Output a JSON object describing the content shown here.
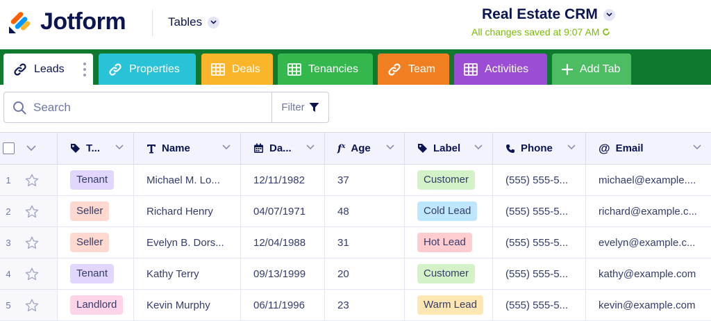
{
  "header": {
    "brand": "Jotform",
    "nav_label": "Tables",
    "crm_title": "Real Estate CRM",
    "save_status": "All changes saved at 9:07 AM"
  },
  "tabs": [
    {
      "label": "Leads",
      "icon": "link-icon",
      "color": "#ffffff",
      "active": true
    },
    {
      "label": "Properties",
      "icon": "link-icon",
      "color": "#29c3d7"
    },
    {
      "label": "Deals",
      "icon": "grid-icon",
      "color": "#f9b429"
    },
    {
      "label": "Tenancies",
      "icon": "grid-icon",
      "color": "#34b74d"
    },
    {
      "label": "Team",
      "icon": "link-icon",
      "color": "#f07f22"
    },
    {
      "label": "Activities",
      "icon": "grid-icon",
      "color": "#9b4ed3"
    },
    {
      "label": "Add Tab",
      "icon": "plus-icon",
      "color": "#4dbd64"
    }
  ],
  "toolbar": {
    "search_placeholder": "Search",
    "filter_label": "Filter"
  },
  "table": {
    "columns": [
      {
        "label": "T...",
        "icon": "tag-icon"
      },
      {
        "label": "Name",
        "icon": "text-icon"
      },
      {
        "label": "Da...",
        "icon": "calendar-icon"
      },
      {
        "label": "Age",
        "icon": "formula-icon"
      },
      {
        "label": "Label",
        "icon": "tag-icon"
      },
      {
        "label": "Phone",
        "icon": "phone-icon"
      },
      {
        "label": "Email",
        "icon": "at-icon"
      }
    ],
    "rows": [
      {
        "num": "1",
        "type": "Tenant",
        "name": "Michael M. Lo...",
        "date": "12/11/1982",
        "age": "37",
        "label": "Customer",
        "phone": "(555) 555-5...",
        "email": "michael@example...."
      },
      {
        "num": "2",
        "type": "Seller",
        "name": "Richard Henry",
        "date": "04/07/1971",
        "age": "48",
        "label": "Cold Lead",
        "phone": "(555) 555-5...",
        "email": "richard@example.c..."
      },
      {
        "num": "3",
        "type": "Seller",
        "name": "Evelyn B. Dors...",
        "date": "12/04/1988",
        "age": "31",
        "label": "Hot Lead",
        "phone": "(555) 555-5...",
        "email": "evelyn@example.c..."
      },
      {
        "num": "4",
        "type": "Tenant",
        "name": "Kathy Terry",
        "date": "09/13/1999",
        "age": "20",
        "label": "Customer",
        "phone": "(555) 555-5...",
        "email": "kathy@example.com"
      },
      {
        "num": "5",
        "type": "Landlord",
        "name": "Kevin Murphy",
        "date": "06/11/1996",
        "age": "23",
        "label": "Warm Lead",
        "phone": "(555) 555-5...",
        "email": "kevin@example.com"
      }
    ],
    "type_colors": {
      "Tenant": "#e2d6ff",
      "Seller": "#ffd9cf",
      "Landlord": "#ffd4e8"
    },
    "label_colors": {
      "Customer": "#d3f2c7",
      "Cold Lead": "#bfe6ff",
      "Hot Lead": "#ffcdd0",
      "Warm Lead": "#ffe7b3"
    }
  }
}
